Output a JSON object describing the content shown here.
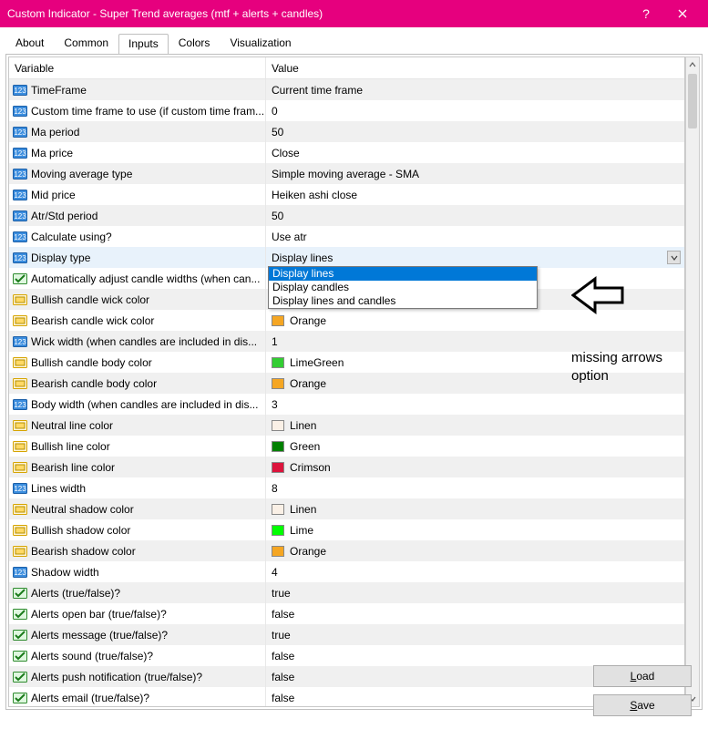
{
  "window": {
    "title": "Custom Indicator - Super Trend averages (mtf + alerts + candles)"
  },
  "tabs": [
    "About",
    "Common",
    "Inputs",
    "Colors",
    "Visualization"
  ],
  "active_tab": "Inputs",
  "columns": {
    "variable": "Variable",
    "value": "Value"
  },
  "rows": [
    {
      "icon": "num",
      "name": "TimeFrame",
      "value": "Current time frame"
    },
    {
      "icon": "num",
      "name": "Custom time frame to use (if custom time fram...",
      "value": "0"
    },
    {
      "icon": "num",
      "name": "Ma period",
      "value": "50"
    },
    {
      "icon": "num",
      "name": "Ma price",
      "value": "Close"
    },
    {
      "icon": "num",
      "name": "Moving average type",
      "value": "Simple moving average - SMA"
    },
    {
      "icon": "num",
      "name": "Mid price",
      "value": "Heiken ashi close"
    },
    {
      "icon": "num",
      "name": "Atr/Std period",
      "value": "50"
    },
    {
      "icon": "num",
      "name": "Calculate using?",
      "value": "Use atr"
    },
    {
      "icon": "num",
      "name": "Display type",
      "value": "Display lines",
      "selected": true,
      "dropdown": true
    },
    {
      "icon": "bool",
      "name": "Automatically adjust candle widths (when can...",
      "value": ""
    },
    {
      "icon": "color",
      "name": "Bullish candle wick color",
      "value": ""
    },
    {
      "icon": "color",
      "name": "Bearish candle wick color",
      "value": "Orange",
      "swatch": "#f5a623"
    },
    {
      "icon": "num",
      "name": "Wick width (when candles are included in dis...",
      "value": "1"
    },
    {
      "icon": "color",
      "name": "Bullish candle body color",
      "value": "LimeGreen",
      "swatch": "#32cd32"
    },
    {
      "icon": "color",
      "name": "Bearish candle body color",
      "value": "Orange",
      "swatch": "#f5a623"
    },
    {
      "icon": "num",
      "name": "Body width (when candles are included in dis...",
      "value": "3"
    },
    {
      "icon": "color",
      "name": "Neutral line color",
      "value": "Linen",
      "swatch": "#faf0e6"
    },
    {
      "icon": "color",
      "name": "Bullish line color",
      "value": "Green",
      "swatch": "#008000"
    },
    {
      "icon": "color",
      "name": "Bearish line color",
      "value": "Crimson",
      "swatch": "#dc143c"
    },
    {
      "icon": "num",
      "name": "Lines width",
      "value": "8"
    },
    {
      "icon": "color",
      "name": "Neutral shadow color",
      "value": "Linen",
      "swatch": "#faf0e6"
    },
    {
      "icon": "color",
      "name": "Bullish shadow color",
      "value": "Lime",
      "swatch": "#00ff00"
    },
    {
      "icon": "color",
      "name": "Bearish shadow color",
      "value": "Orange",
      "swatch": "#f5a623"
    },
    {
      "icon": "num",
      "name": "Shadow width",
      "value": "4"
    },
    {
      "icon": "bool",
      "name": "Alerts (true/false)?",
      "value": "true"
    },
    {
      "icon": "bool",
      "name": "Alerts open bar (true/false)?",
      "value": "false"
    },
    {
      "icon": "bool",
      "name": "Alerts message (true/false)?",
      "value": "true"
    },
    {
      "icon": "bool",
      "name": "Alerts sound (true/false)?",
      "value": "false"
    },
    {
      "icon": "bool",
      "name": "Alerts push notification (true/false)?",
      "value": "false"
    },
    {
      "icon": "bool",
      "name": "Alerts email (true/false)?",
      "value": "false"
    }
  ],
  "dropdown_options": [
    "Display lines",
    "Display candles",
    "Display lines and candles"
  ],
  "dropdown_selected": "Display lines",
  "annotation": "missing arrows option",
  "buttons": {
    "load": "Load",
    "save": "Save"
  },
  "colors": {
    "titlebar": "#e6007e",
    "row_alt": "#f0f0f0",
    "sel_row": "#e8f2fb",
    "dd_sel": "#0078d7"
  }
}
